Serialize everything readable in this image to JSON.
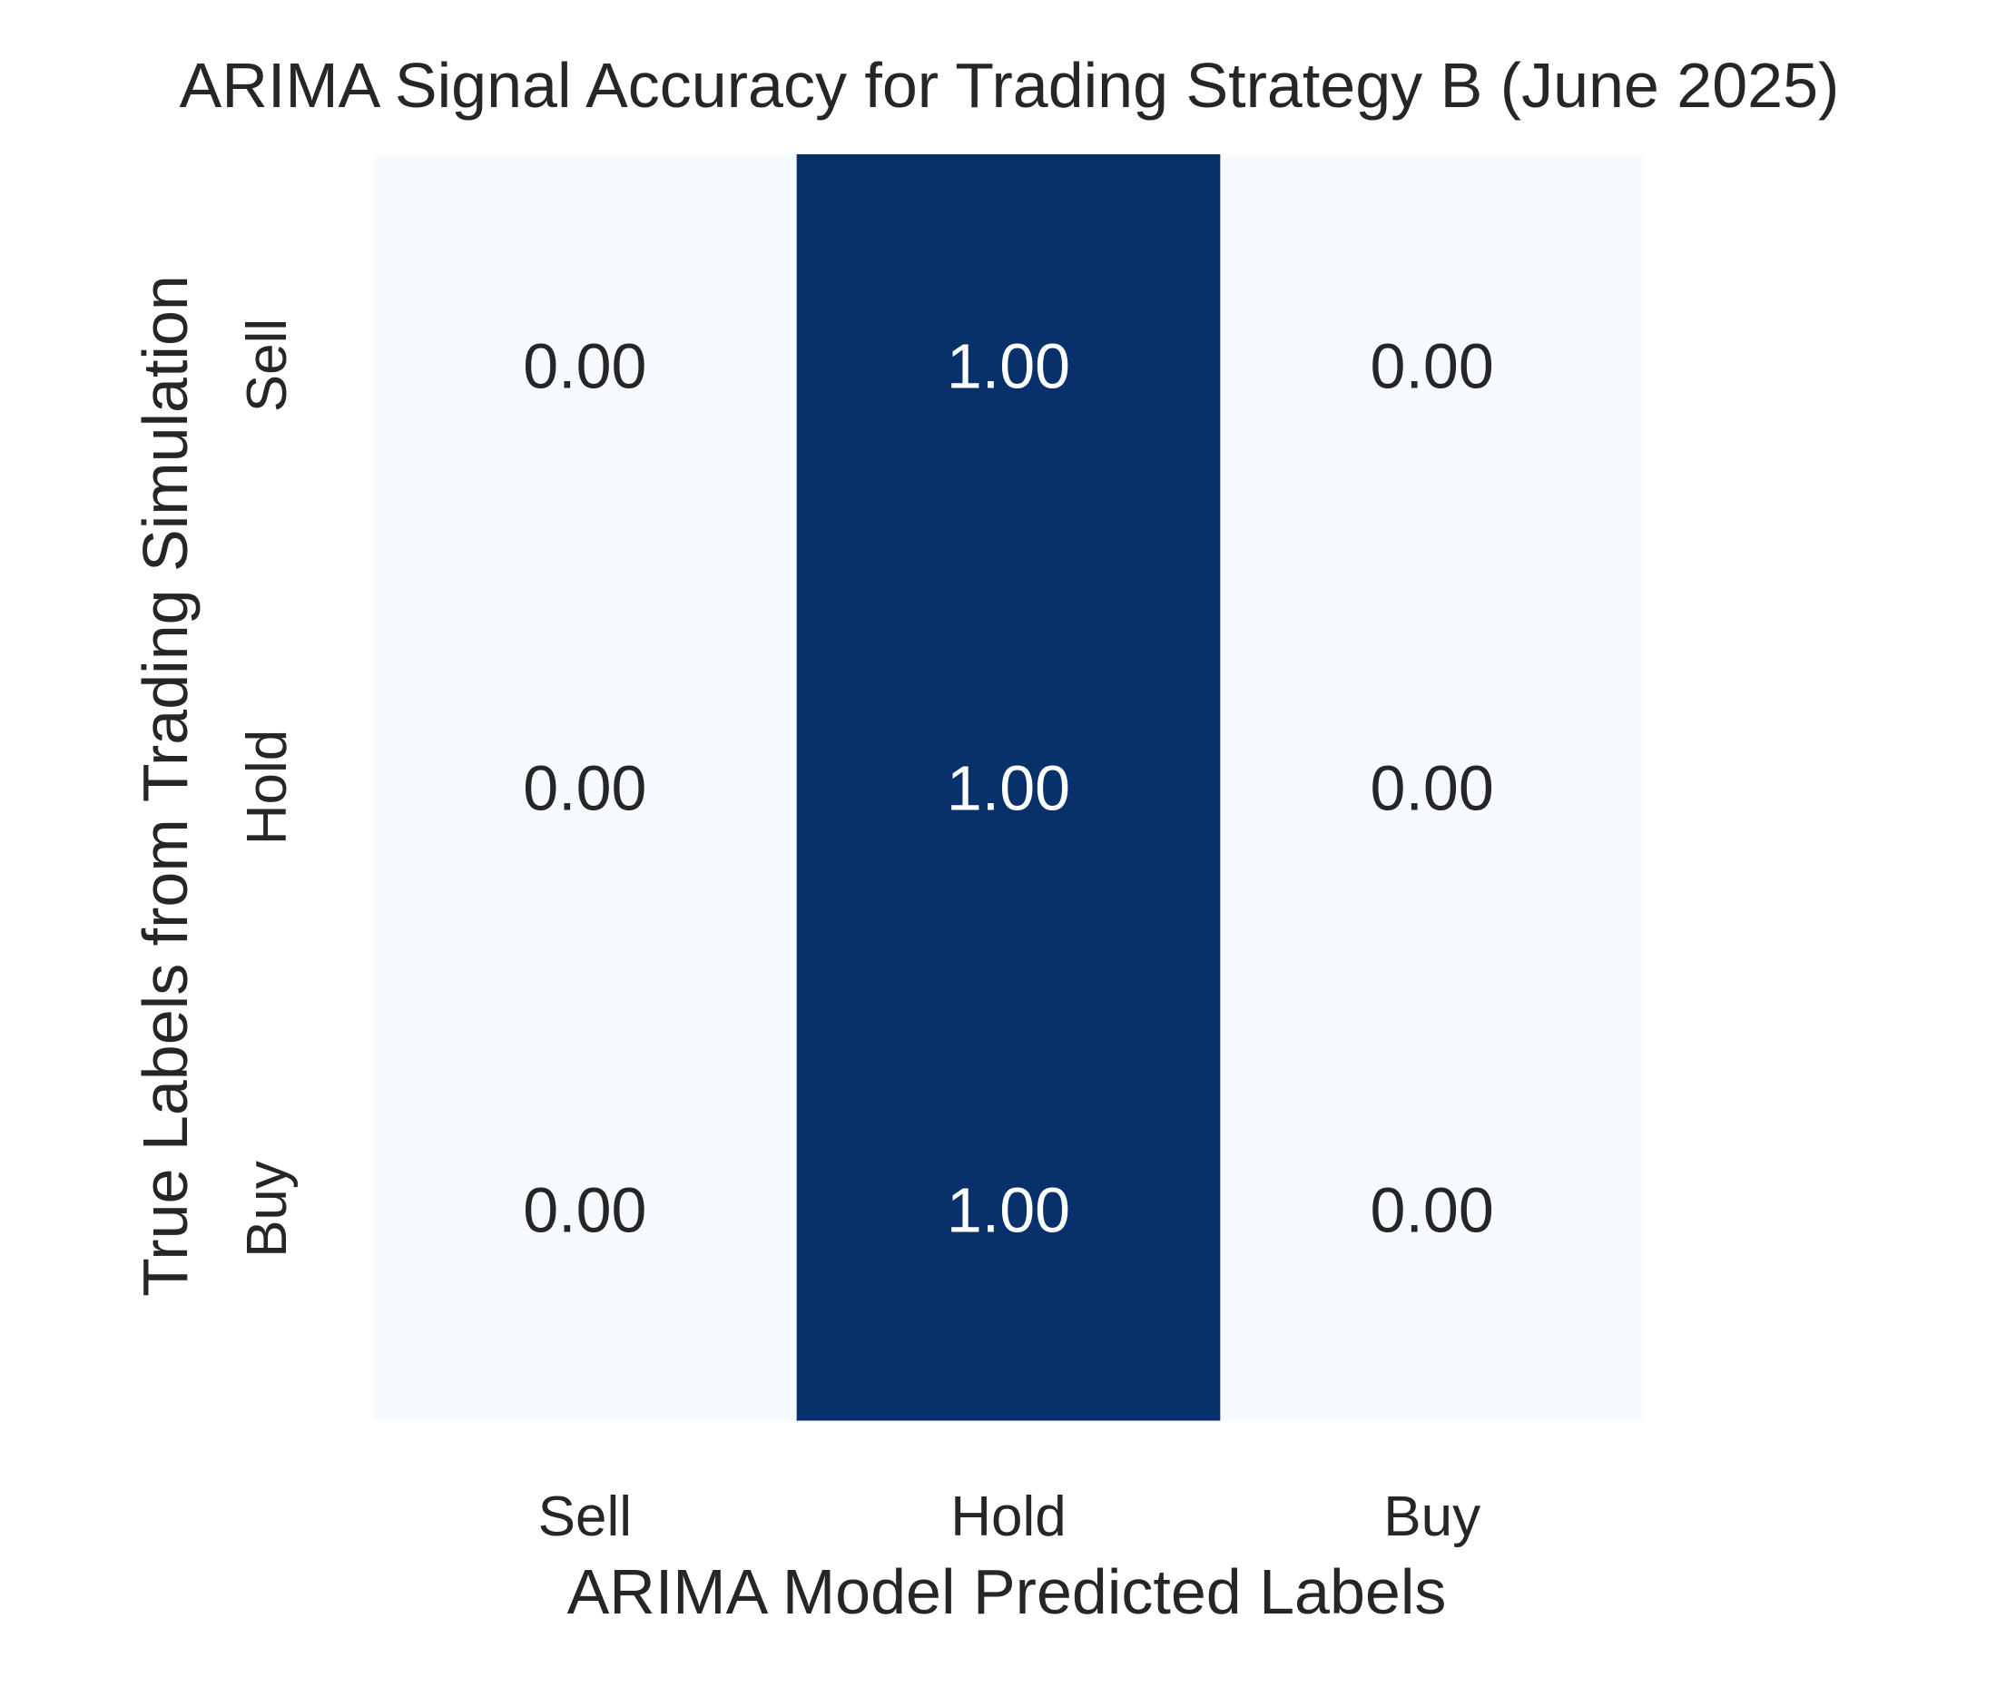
{
  "chart_data": {
    "type": "heatmap",
    "title": "ARIMA Signal Accuracy for Trading Strategy B (June 2025)",
    "xlabel": "ARIMA Model Predicted Labels",
    "ylabel": "True Labels from Trading Simulation",
    "x_categories": [
      "Sell",
      "Hold",
      "Buy"
    ],
    "y_categories": [
      "Sell",
      "Hold",
      "Buy"
    ],
    "values": [
      [
        0.0,
        1.0,
        0.0
      ],
      [
        0.0,
        1.0,
        0.0
      ],
      [
        0.0,
        1.0,
        0.0
      ]
    ],
    "value_format": "0.00",
    "colormap": "Blues",
    "color_low": "#f7fbff",
    "color_high": "#08306b",
    "text_color_light": "#ffffff",
    "text_color_dark": "#262626",
    "vmin": 0,
    "vmax": 1,
    "colorbar": false,
    "grid": false
  }
}
